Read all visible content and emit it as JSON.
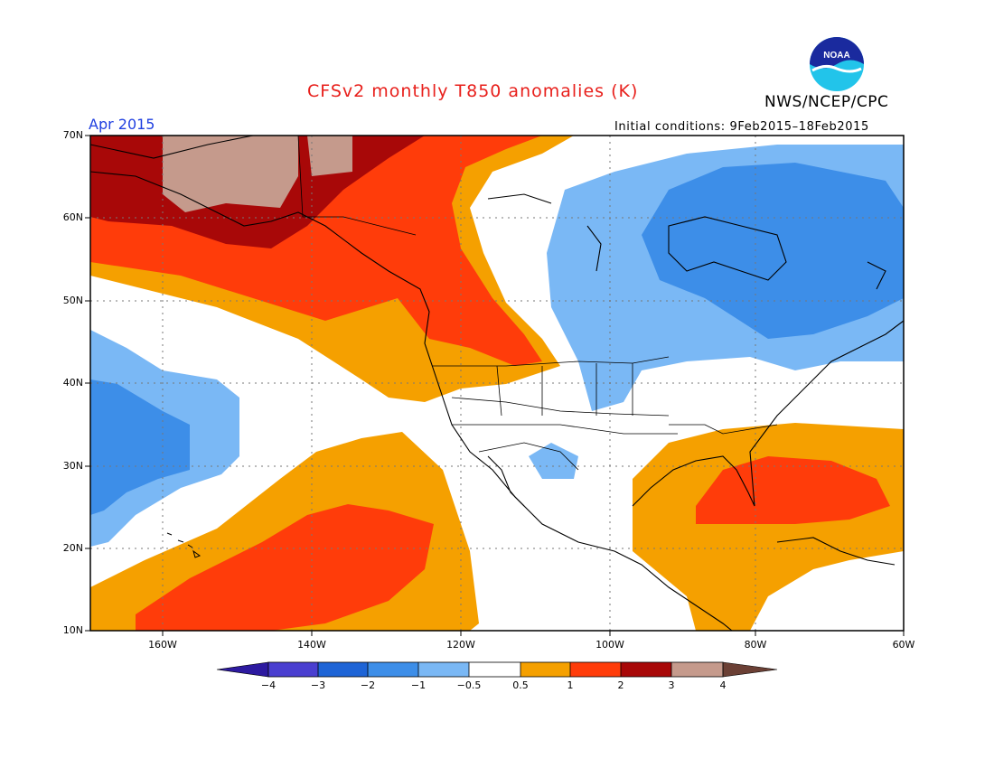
{
  "header": {
    "title": "CFSv2 monthly T850 anomalies (K)",
    "agency": "NWS/NCEP/CPC",
    "logo_text": "NOAA",
    "period": "Apr 2015",
    "initial_conditions": "Initial conditions: 9Feb2015–18Feb2015"
  },
  "map": {
    "lat_labels": [
      "70N",
      "60N",
      "50N",
      "40N",
      "30N",
      "20N",
      "10N"
    ],
    "lon_labels": [
      "160W",
      "140W",
      "120W",
      "100W",
      "80W",
      "60W"
    ]
  },
  "colorbar": {
    "labels": [
      "−4",
      "−3",
      "−2",
      "−1",
      "−0.5",
      "0.5",
      "1",
      "2",
      "3",
      "4"
    ],
    "colors": {
      "lt_minus4": "#2d1aa0",
      "m4_m3": "#4a3fd0",
      "m3_m2": "#1e64d6",
      "m2_m1": "#3d8ee8",
      "m1_m05": "#7ab8f5",
      "neutral": "#ffffff",
      "p05_p1": "#f5a000",
      "p1_p2": "#ff3c0a",
      "p2_p3": "#a80808",
      "p3_p4": "#c59a8c",
      "gt_4": "#6b4035"
    }
  }
}
